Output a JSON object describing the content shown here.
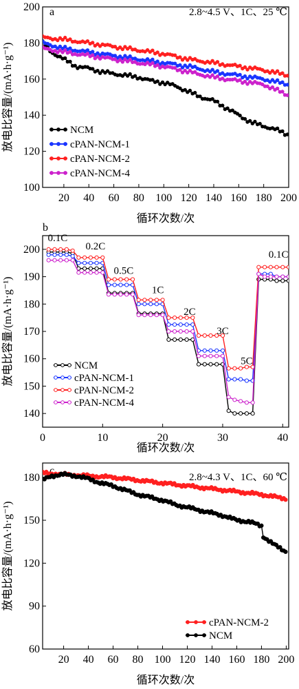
{
  "chart_data": [
    {
      "type": "line",
      "panel_label": "a",
      "condition_text": "2.8~4.5 V、1C、25 ℃",
      "xlabel": "循环次数/次",
      "ylabel": "放电比容量/(mA·h·g⁻¹)",
      "xlim": [
        3,
        200
      ],
      "ylim": [
        100,
        200
      ],
      "xticks": [
        20,
        40,
        60,
        80,
        100,
        120,
        140,
        160,
        180,
        200
      ],
      "yticks": [
        100,
        120,
        140,
        160,
        180,
        200
      ],
      "legend_position": "bottom-left",
      "series": [
        {
          "name": "NCM",
          "color": "#000000",
          "x": [
            3,
            10,
            20,
            30,
            40,
            50,
            60,
            70,
            80,
            90,
            100,
            110,
            120,
            130,
            140,
            150,
            160,
            170,
            180,
            190,
            200
          ],
          "y": [
            180,
            175,
            171,
            167,
            166,
            164,
            163,
            162,
            161,
            159,
            158,
            156,
            153,
            150,
            148,
            144,
            140,
            136,
            134,
            132,
            129
          ]
        },
        {
          "name": "cPAN-NCM-1",
          "color": "#1a35ff",
          "x": [
            3,
            20,
            40,
            60,
            80,
            100,
            120,
            140,
            160,
            180,
            200
          ],
          "y": [
            180,
            177,
            175,
            173,
            171,
            169,
            167,
            164,
            162,
            160,
            157
          ]
        },
        {
          "name": "cPAN-NCM-2",
          "color": "#ff2020",
          "x": [
            3,
            20,
            40,
            60,
            80,
            100,
            120,
            140,
            160,
            180,
            200
          ],
          "y": [
            183,
            182,
            180,
            178,
            176,
            174,
            171,
            169,
            167,
            165,
            162
          ]
        },
        {
          "name": "cPAN-NCM-4",
          "color": "#cc22cc",
          "x": [
            3,
            20,
            40,
            60,
            80,
            100,
            120,
            140,
            160,
            180,
            200
          ],
          "y": [
            177,
            175,
            173,
            171,
            169,
            167,
            164,
            161,
            159,
            157,
            151
          ]
        }
      ]
    },
    {
      "type": "line",
      "panel_label": "b",
      "xlabel": "循环次数/次",
      "ylabel": "放电比容量/(mA·h·g⁻¹)",
      "xlim": [
        0,
        41
      ],
      "ylim": [
        135,
        205
      ],
      "xticks": [
        0,
        10,
        20,
        30,
        40
      ],
      "yticks": [
        140,
        150,
        160,
        170,
        180,
        190,
        200
      ],
      "legend_position": "bottom-left",
      "rate_labels": [
        {
          "text": "0.1C",
          "x": 2.5,
          "y": 203
        },
        {
          "text": "0.2C",
          "x": 8.8,
          "y": 200
        },
        {
          "text": "0.5C",
          "x": 13.5,
          "y": 191
        },
        {
          "text": "1C",
          "x": 19.2,
          "y": 184
        },
        {
          "text": "2C",
          "x": 24.5,
          "y": 176
        },
        {
          "text": "3C",
          "x": 30,
          "y": 169
        },
        {
          "text": "5C",
          "x": 34,
          "y": 158
        },
        {
          "text": "0.1C",
          "x": 39.3,
          "y": 197
        }
      ],
      "series": [
        {
          "name": "NCM",
          "color": "#000000",
          "x": [
            1,
            2,
            3,
            4,
            5,
            6,
            7,
            8,
            9,
            10,
            11,
            12,
            13,
            14,
            15,
            16,
            17,
            18,
            19,
            20,
            21,
            22,
            23,
            24,
            25,
            26,
            27,
            28,
            29,
            30,
            31,
            32,
            33,
            34,
            35,
            36,
            37,
            38,
            39,
            40,
            41
          ],
          "y": [
            199,
            199,
            199,
            199,
            198.5,
            193,
            193,
            193,
            193,
            193,
            184,
            184,
            184,
            184,
            184,
            176.5,
            176.5,
            176.5,
            176.5,
            176.5,
            167,
            167,
            167,
            167,
            167,
            158,
            158,
            158,
            158,
            158,
            141,
            140,
            140,
            140,
            140,
            189,
            189,
            189,
            188.5,
            188.5,
            188.5
          ]
        },
        {
          "name": "cPAN-NCM-1",
          "color": "#1a35ff",
          "x": [
            1,
            2,
            3,
            4,
            5,
            6,
            7,
            8,
            9,
            10,
            11,
            12,
            13,
            14,
            15,
            16,
            17,
            18,
            19,
            20,
            21,
            22,
            23,
            24,
            25,
            26,
            27,
            28,
            29,
            30,
            31,
            32,
            33,
            34,
            35,
            36,
            37,
            38,
            39,
            40,
            41
          ],
          "y": [
            198,
            198,
            198,
            198,
            197.5,
            195,
            195,
            195,
            195,
            195,
            187,
            187,
            187,
            187,
            187,
            180,
            180,
            180,
            180,
            180,
            172.5,
            172.5,
            172.5,
            172.5,
            172.5,
            163,
            163,
            163,
            163,
            163,
            152.5,
            152.5,
            152.5,
            152,
            152,
            191,
            191,
            191,
            190,
            190,
            190
          ]
        },
        {
          "name": "cPAN-NCM-2",
          "color": "#ff2020",
          "x": [
            1,
            2,
            3,
            4,
            5,
            6,
            7,
            8,
            9,
            10,
            11,
            12,
            13,
            14,
            15,
            16,
            17,
            18,
            19,
            20,
            21,
            22,
            23,
            24,
            25,
            26,
            27,
            28,
            29,
            30,
            31,
            32,
            33,
            34,
            35,
            36,
            37,
            38,
            39,
            40,
            41
          ],
          "y": [
            200,
            200,
            200,
            200,
            199.5,
            197,
            197,
            197,
            197,
            197,
            189,
            189,
            189,
            189,
            189,
            181.5,
            181.5,
            181.5,
            181.5,
            181.5,
            175,
            175,
            175,
            175,
            175,
            168.5,
            168.5,
            168.5,
            168.5,
            168.5,
            156.5,
            156.5,
            156.5,
            157,
            157,
            193.5,
            193.5,
            193.5,
            193.5,
            193.5,
            193.5
          ]
        },
        {
          "name": "cPAN-NCM-4",
          "color": "#cc22cc",
          "x": [
            1,
            2,
            3,
            4,
            5,
            6,
            7,
            8,
            9,
            10,
            11,
            12,
            13,
            14,
            15,
            16,
            17,
            18,
            19,
            20,
            21,
            22,
            23,
            24,
            25,
            26,
            27,
            28,
            29,
            30,
            31,
            32,
            33,
            34,
            35,
            36,
            37,
            38,
            39,
            40,
            41
          ],
          "y": [
            196,
            196,
            196,
            196,
            196,
            191.5,
            191.5,
            191.5,
            191.5,
            191.5,
            183.5,
            183.5,
            183.5,
            183.5,
            183.5,
            176,
            176,
            176,
            176,
            176,
            170,
            170,
            170,
            170,
            170,
            161,
            161,
            161,
            161,
            161,
            146,
            145,
            144.5,
            144,
            144,
            191,
            190,
            190,
            190,
            190,
            190
          ]
        }
      ]
    },
    {
      "type": "line",
      "panel_label": "c",
      "condition_text": "2.8~4.3 V、1C、60 ℃",
      "xlabel": "循环次数/次",
      "ylabel": "放电比容量/(mA·h·g⁻¹)",
      "xlim": [
        3,
        202
      ],
      "ylim": [
        60,
        190
      ],
      "xticks": [
        20,
        40,
        60,
        80,
        100,
        120,
        140,
        160,
        180,
        200
      ],
      "yticks": [
        60,
        90,
        120,
        150,
        180
      ],
      "legend_position": "bottom-right",
      "series": [
        {
          "name": "cPAN-NCM-2",
          "color": "#ff2020",
          "x": [
            3,
            20,
            40,
            60,
            80,
            100,
            120,
            140,
            160,
            180,
            200
          ],
          "y": [
            183,
            182,
            181,
            180,
            178,
            176,
            174,
            172,
            170,
            168,
            165
          ]
        },
        {
          "name": "NCM",
          "color": "#000000",
          "x": [
            3,
            10,
            20,
            30,
            40,
            50,
            60,
            70,
            80,
            90,
            100,
            110,
            120,
            130,
            140,
            150,
            160,
            170,
            180,
            181,
            190,
            200
          ],
          "y": [
            178,
            181,
            182,
            181,
            179,
            176,
            174,
            171,
            168,
            166,
            164,
            161,
            159,
            157,
            155,
            153,
            150,
            149,
            146,
            139,
            133,
            128
          ]
        }
      ]
    }
  ]
}
